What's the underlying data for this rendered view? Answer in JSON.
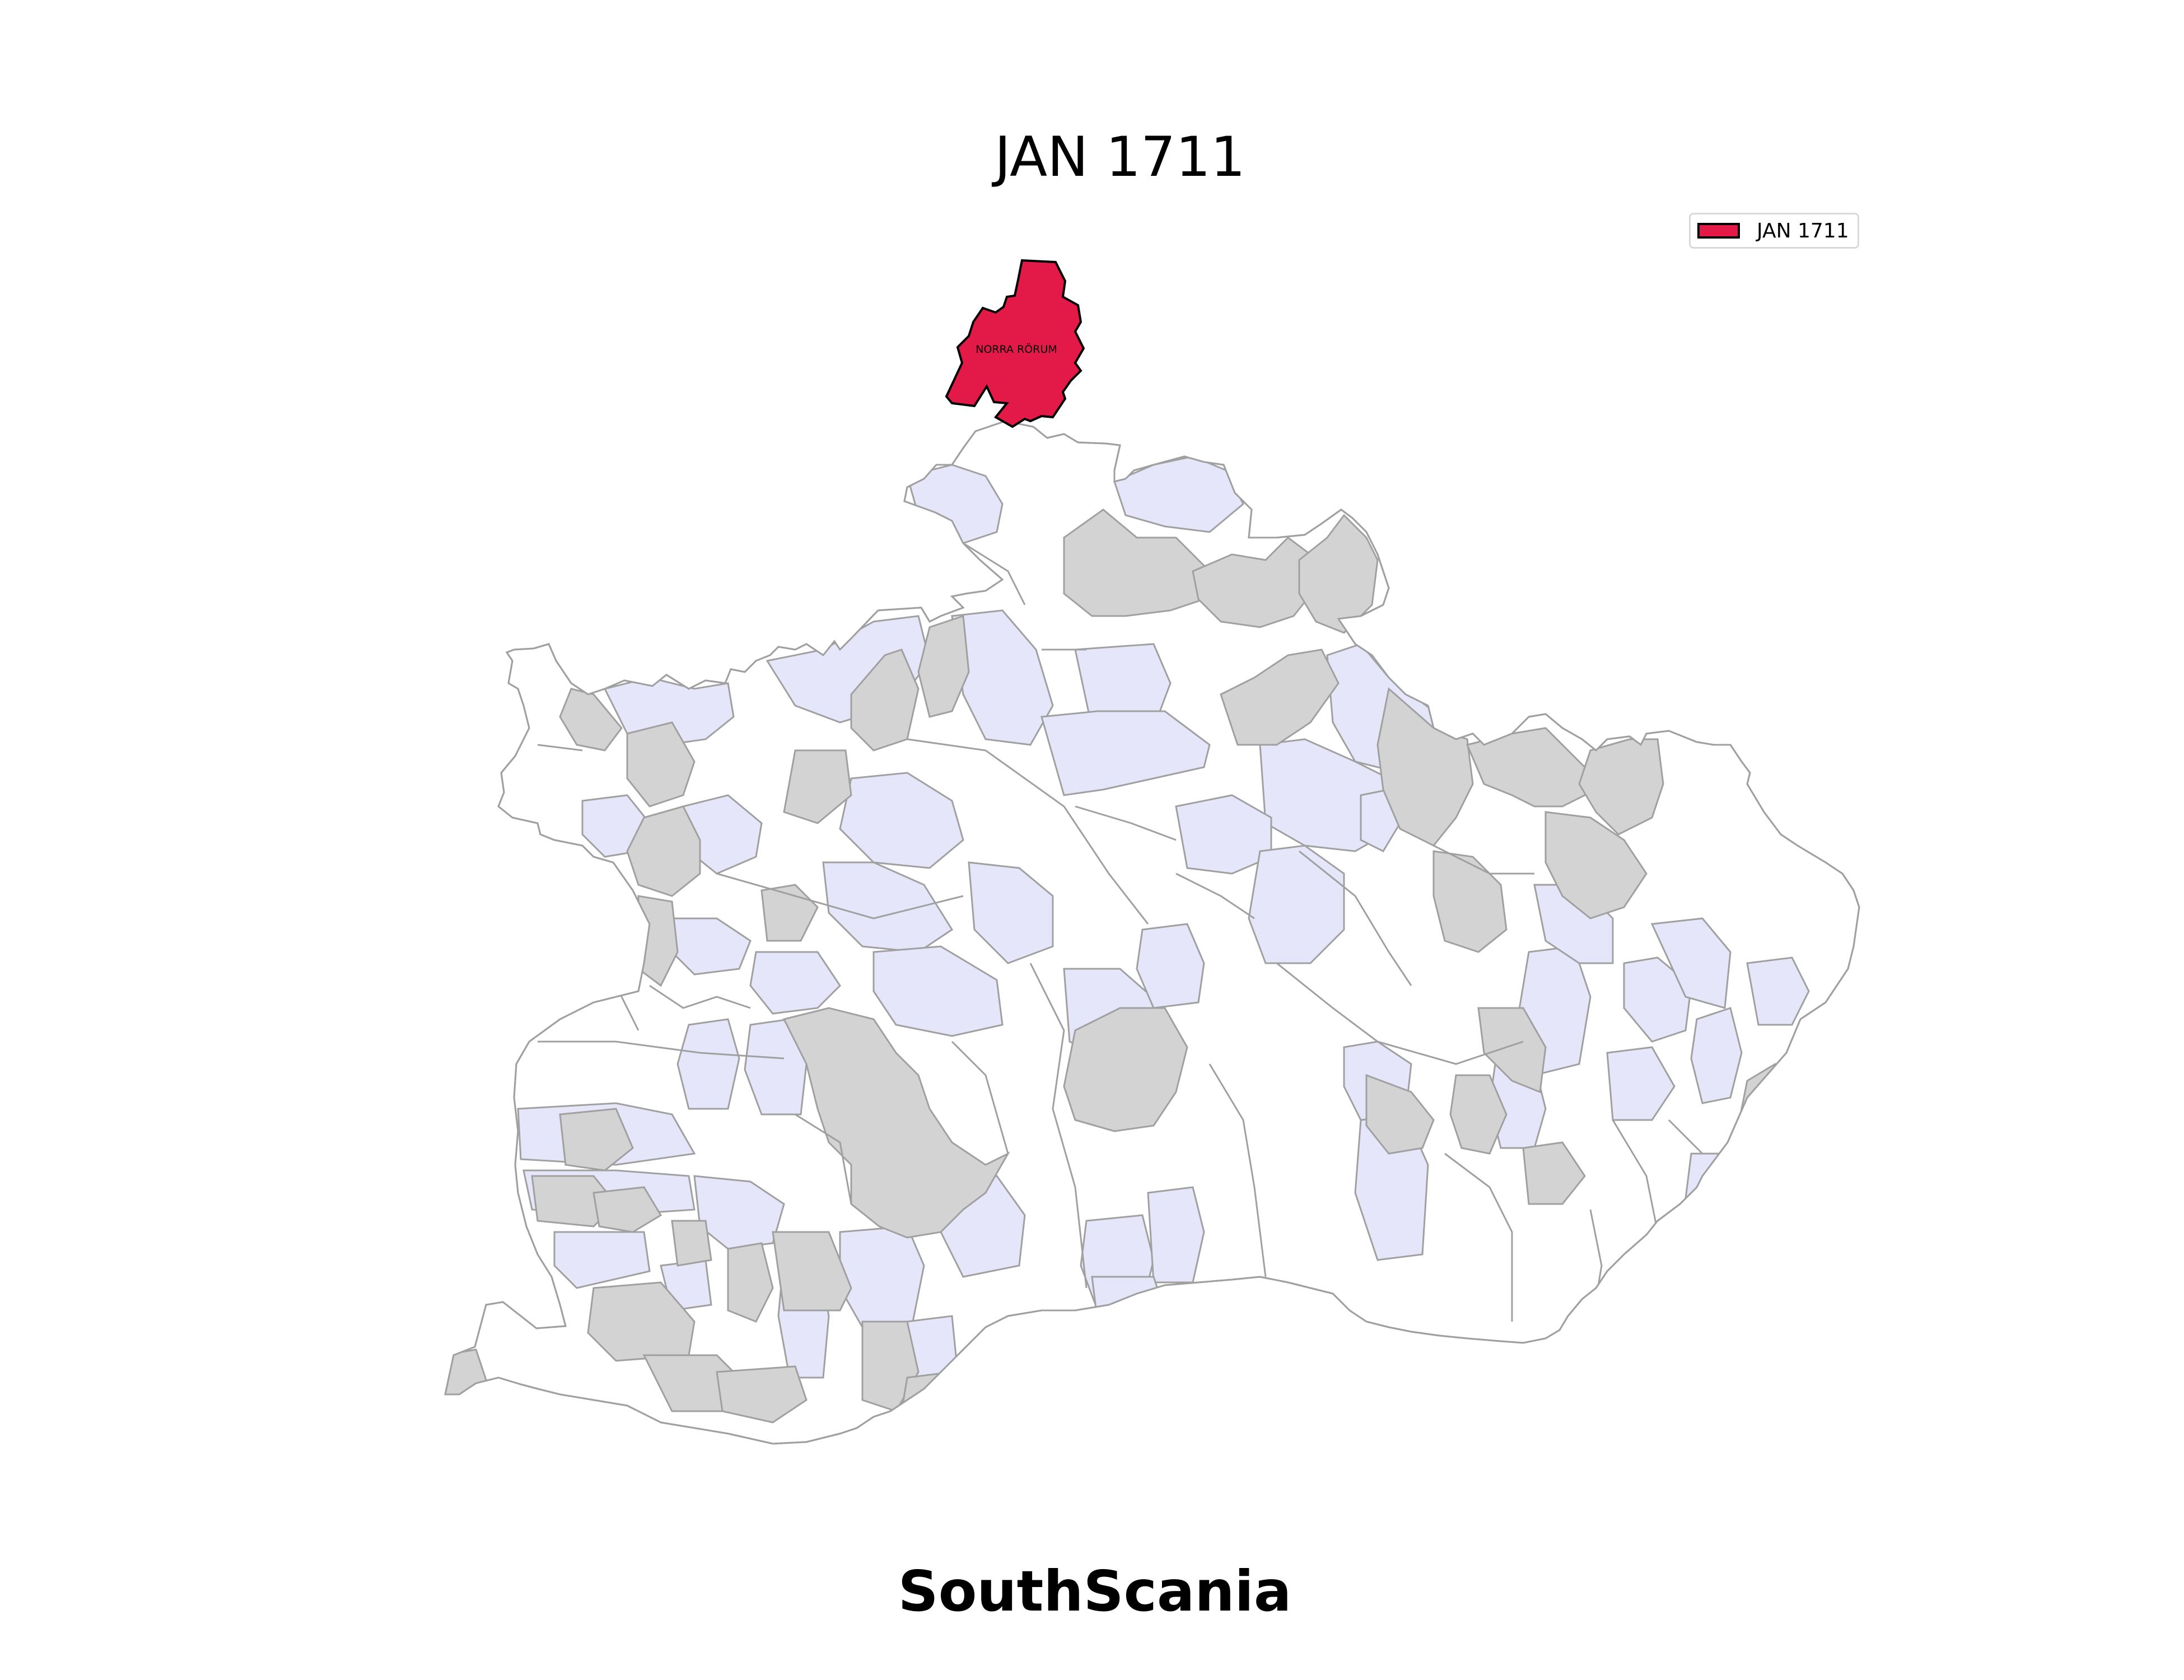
{
  "title": "JAN 1711",
  "footer": "SouthScania",
  "legend": {
    "items": [
      {
        "label": "JAN 1711",
        "color": "#e31a48"
      }
    ],
    "placement": "top-right"
  },
  "highlighted_region": {
    "name": "NORRA RÖRUM",
    "period": "JAN 1711",
    "color": "#e31a48"
  },
  "colors": {
    "highlight": "#e31a48",
    "lavender": "#e6e6fa",
    "grey": "#d3d3d3",
    "white": "#ffffff",
    "border": "#a0a0a0",
    "highlight_border": "#000000"
  }
}
